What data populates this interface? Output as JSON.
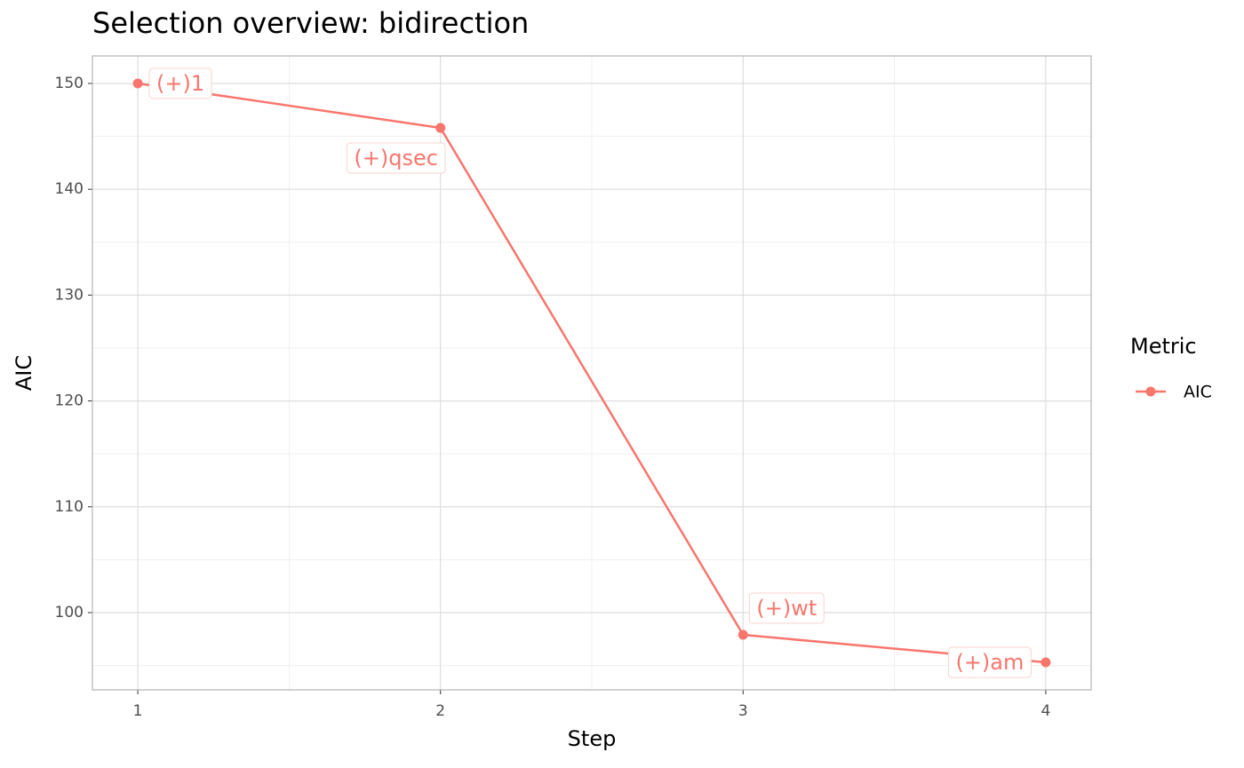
{
  "chart_data": {
    "type": "line",
    "title": "Selection overview: bidirection",
    "x_label": "Step",
    "y_label": "AIC",
    "x": [
      1,
      2,
      3,
      4
    ],
    "series": [
      {
        "name": "AIC",
        "color": "#F8766D",
        "values": [
          150,
          145.8,
          97.9,
          95.3
        ],
        "point_labels": [
          "(+)1",
          "(+)qsec",
          "(+)wt",
          "(+)am"
        ]
      }
    ],
    "xlim": [
      0.85,
      4.15
    ],
    "xticks": [
      1,
      2,
      3,
      4
    ],
    "ylim": [
      92.7,
      152.6
    ],
    "yticks": [
      100,
      110,
      120,
      130,
      140,
      150
    ],
    "grid": true,
    "minor_grid": true,
    "legend_title": "Metric",
    "legend_position": "right"
  }
}
